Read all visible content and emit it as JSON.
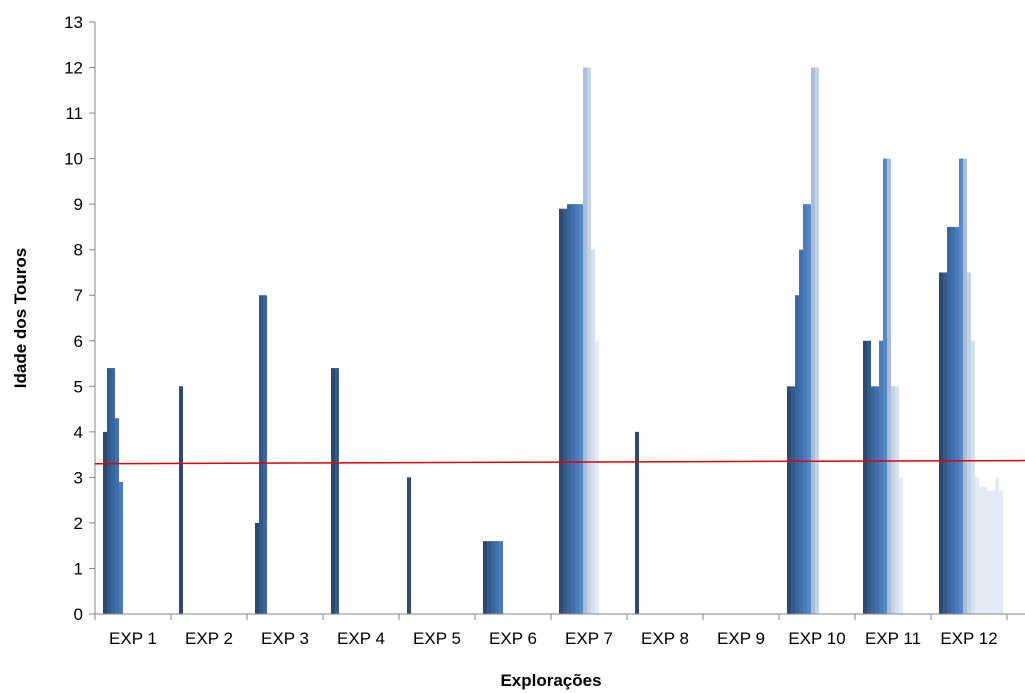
{
  "chart_data": {
    "type": "bar",
    "title": "",
    "xlabel": "Explorações",
    "ylabel": "Idade dos Touros",
    "ylim": [
      0,
      13
    ],
    "y_ticks": [
      0,
      1,
      2,
      3,
      4,
      5,
      6,
      7,
      8,
      9,
      10,
      11,
      12,
      13
    ],
    "categories": [
      "EXP 1",
      "EXP 2",
      "EXP 3",
      "EXP 4",
      "EXP 5",
      "EXP 6",
      "EXP 7",
      "EXP 8",
      "EXP 9",
      "EXP 10",
      "EXP 11",
      "EXP 12"
    ],
    "series": [
      {
        "values": [
          4.0,
          5.0,
          2.0,
          5.4,
          3.0,
          1.6,
          8.9,
          4.0,
          null,
          5.0,
          6.0,
          7.5
        ]
      },
      {
        "values": [
          5.4,
          null,
          7.0,
          5.4,
          null,
          1.6,
          8.9,
          null,
          null,
          5.0,
          6.0,
          7.5
        ]
      },
      {
        "values": [
          5.4,
          null,
          7.0,
          null,
          null,
          1.6,
          9.0,
          null,
          null,
          7.0,
          5.0,
          8.5
        ]
      },
      {
        "values": [
          4.3,
          null,
          null,
          null,
          null,
          1.6,
          9.0,
          null,
          null,
          8.0,
          5.0,
          8.5
        ]
      },
      {
        "values": [
          2.9,
          null,
          null,
          null,
          null,
          1.6,
          9.0,
          null,
          null,
          9.0,
          6.0,
          8.5
        ]
      },
      {
        "values": [
          null,
          null,
          null,
          null,
          null,
          null,
          9.0,
          null,
          null,
          9.0,
          10.0,
          10.0
        ]
      },
      {
        "values": [
          null,
          null,
          null,
          null,
          null,
          null,
          12.0,
          null,
          null,
          12.0,
          10.0,
          10.0
        ]
      },
      {
        "values": [
          null,
          null,
          null,
          null,
          null,
          null,
          12.0,
          null,
          null,
          12.0,
          5.0,
          7.5
        ]
      },
      {
        "values": [
          null,
          null,
          null,
          null,
          null,
          null,
          8.0,
          null,
          null,
          null,
          5.0,
          6.0
        ]
      },
      {
        "values": [
          null,
          null,
          null,
          null,
          null,
          null,
          6.0,
          null,
          null,
          null,
          3.0,
          3.0
        ]
      },
      {
        "values": [
          null,
          null,
          null,
          null,
          null,
          null,
          null,
          null,
          null,
          null,
          null,
          2.8
        ]
      },
      {
        "values": [
          null,
          null,
          null,
          null,
          null,
          null,
          null,
          null,
          null,
          null,
          null,
          2.8
        ]
      },
      {
        "values": [
          null,
          null,
          null,
          null,
          null,
          null,
          null,
          null,
          null,
          null,
          null,
          2.7
        ]
      },
      {
        "values": [
          null,
          null,
          null,
          null,
          null,
          null,
          null,
          null,
          null,
          null,
          null,
          2.7
        ]
      },
      {
        "values": [
          null,
          null,
          null,
          null,
          null,
          null,
          null,
          null,
          null,
          null,
          null,
          3.0
        ]
      },
      {
        "values": [
          null,
          null,
          null,
          null,
          null,
          null,
          null,
          null,
          null,
          null,
          null,
          2.7
        ]
      }
    ],
    "reference_line": {
      "start": 3.3,
      "end": 3.37,
      "color": "#e00000"
    },
    "bar_colors": [
      "#2c4a72",
      "#345a8a",
      "#3a66a0",
      "#4170b0",
      "#4a7bbb",
      "#5688c6",
      "#a9bcd8",
      "#c4d2e6",
      "#d6e0ee",
      "#e3eaf4"
    ],
    "grid": false,
    "legend": "none"
  }
}
